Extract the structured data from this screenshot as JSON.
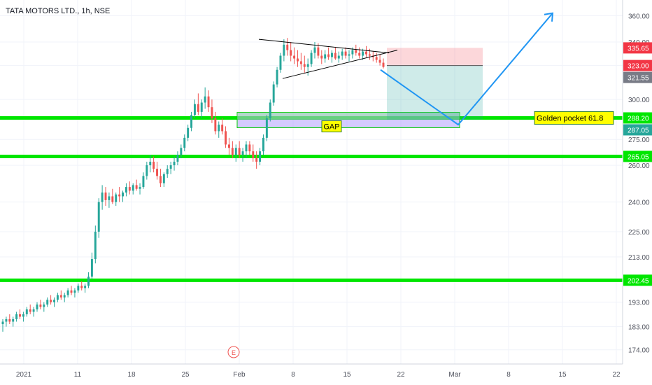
{
  "header": {
    "title": "TATA MOTORS LTD., 1h, NSE"
  },
  "chart_data": {
    "type": "candlestick",
    "symbol": "TATA MOTORS LTD.",
    "interval": "1h",
    "exchange": "NSE",
    "y_scale": "log",
    "ylim": [
      170,
      368
    ],
    "y_ticks": [
      "360.00",
      "340.00",
      "323.00",
      "300.00",
      "288.20",
      "275.00",
      "265.05",
      "260.00",
      "240.00",
      "225.00",
      "213.00",
      "202.45",
      "193.00",
      "183.00",
      "174.00"
    ],
    "x_ticks": [
      "2021",
      "11",
      "18",
      "25",
      "Feb",
      "8",
      "15",
      "22",
      "Mar",
      "8",
      "15",
      "22"
    ],
    "price_badges": [
      {
        "label": "335.65",
        "value": 335.65,
        "color": "#f23645"
      },
      {
        "label": "323.00",
        "value": 323.0,
        "color": "#f23645"
      },
      {
        "label": "321.55",
        "value": 321.55,
        "color": "#787b86"
      },
      {
        "label": "288.20",
        "value": 288.2,
        "color": "#00e600"
      },
      {
        "label": "287.05",
        "value": 287.05,
        "color": "#26a69a"
      },
      {
        "label": "265.05",
        "value": 265.05,
        "color": "#00e600"
      },
      {
        "label": "202.45",
        "value": 202.45,
        "color": "#00e600"
      }
    ],
    "horizontal_levels": [
      288.2,
      265.05,
      202.45
    ],
    "annotations": {
      "gap_label": "GAP",
      "golden_pocket_label": "Golden pocket 61.8",
      "earnings_marker": "E"
    },
    "colors": {
      "up": "#26a69a",
      "down": "#ef5350",
      "level": "#00e600",
      "projection": "#2196f3",
      "triangle": "#000000"
    },
    "candles": [
      [
        184,
        186,
        181,
        185
      ],
      [
        185,
        187,
        183,
        186
      ],
      [
        186,
        188,
        184,
        185
      ],
      [
        185,
        187,
        183,
        186
      ],
      [
        186,
        189,
        185,
        188
      ],
      [
        188,
        190,
        186,
        187
      ],
      [
        187,
        189,
        185,
        188
      ],
      [
        188,
        191,
        187,
        190
      ],
      [
        190,
        192,
        188,
        189
      ],
      [
        189,
        191,
        187,
        190
      ],
      [
        190,
        193,
        189,
        192
      ],
      [
        192,
        194,
        190,
        191
      ],
      [
        191,
        193,
        189,
        192
      ],
      [
        192,
        195,
        191,
        194
      ],
      [
        194,
        196,
        192,
        193
      ],
      [
        193,
        195,
        191,
        194
      ],
      [
        194,
        197,
        193,
        196
      ],
      [
        196,
        198,
        194,
        195
      ],
      [
        195,
        197,
        193,
        196
      ],
      [
        196,
        199,
        195,
        198
      ],
      [
        198,
        200,
        196,
        197
      ],
      [
        197,
        199,
        195,
        198
      ],
      [
        198,
        201,
        197,
        200
      ],
      [
        200,
        202,
        198,
        199
      ],
      [
        199,
        201,
        197,
        200
      ],
      [
        200,
        206,
        199,
        204
      ],
      [
        204,
        215,
        203,
        212
      ],
      [
        212,
        228,
        210,
        225
      ],
      [
        225,
        242,
        222,
        240
      ],
      [
        240,
        249,
        236,
        245
      ],
      [
        245,
        248,
        238,
        241
      ],
      [
        241,
        245,
        237,
        243
      ],
      [
        243,
        247,
        239,
        240
      ],
      [
        240,
        245,
        238,
        244
      ],
      [
        244,
        248,
        240,
        243
      ],
      [
        243,
        246,
        240,
        245
      ],
      [
        245,
        250,
        243,
        248
      ],
      [
        248,
        251,
        244,
        246
      ],
      [
        246,
        250,
        244,
        249
      ],
      [
        249,
        252,
        246,
        247
      ],
      [
        247,
        250,
        244,
        248
      ],
      [
        248,
        256,
        247,
        254
      ],
      [
        254,
        262,
        252,
        260
      ],
      [
        260,
        266,
        256,
        262
      ],
      [
        262,
        265,
        256,
        258
      ],
      [
        258,
        262,
        252,
        254
      ],
      [
        254,
        258,
        248,
        250
      ],
      [
        250,
        256,
        248,
        255
      ],
      [
        255,
        260,
        253,
        258
      ],
      [
        258,
        262,
        255,
        260
      ],
      [
        260,
        265,
        257,
        262
      ],
      [
        262,
        268,
        260,
        266
      ],
      [
        266,
        272,
        264,
        270
      ],
      [
        270,
        278,
        268,
        276
      ],
      [
        276,
        284,
        274,
        282
      ],
      [
        282,
        292,
        280,
        290
      ],
      [
        290,
        300,
        288,
        297
      ],
      [
        297,
        304,
        290,
        292
      ],
      [
        292,
        300,
        288,
        298
      ],
      [
        298,
        308,
        294,
        302
      ],
      [
        302,
        306,
        292,
        295
      ],
      [
        295,
        300,
        285,
        288
      ],
      [
        288,
        292,
        278,
        280
      ],
      [
        280,
        286,
        276,
        284
      ],
      [
        284,
        288,
        278,
        280
      ],
      [
        280,
        283,
        270,
        272
      ],
      [
        272,
        276,
        266,
        270
      ],
      [
        270,
        274,
        264,
        266
      ],
      [
        266,
        272,
        262,
        270
      ],
      [
        270,
        274,
        264,
        266
      ],
      [
        266,
        270,
        262,
        268
      ],
      [
        268,
        274,
        264,
        272
      ],
      [
        272,
        274,
        266,
        268
      ],
      [
        268,
        272,
        262,
        264
      ],
      [
        264,
        268,
        258,
        262
      ],
      [
        262,
        270,
        260,
        268
      ],
      [
        268,
        278,
        266,
        276
      ],
      [
        276,
        290,
        274,
        288
      ],
      [
        288,
        300,
        286,
        298
      ],
      [
        298,
        312,
        296,
        310
      ],
      [
        310,
        322,
        308,
        320
      ],
      [
        320,
        332,
        318,
        330
      ],
      [
        330,
        342,
        326,
        338
      ],
      [
        338,
        343,
        330,
        334
      ],
      [
        334,
        340,
        326,
        330
      ],
      [
        330,
        336,
        324,
        328
      ],
      [
        328,
        334,
        322,
        326
      ],
      [
        326,
        332,
        320,
        324
      ],
      [
        324,
        330,
        318,
        322
      ],
      [
        322,
        328,
        316,
        324
      ],
      [
        324,
        334,
        322,
        332
      ],
      [
        332,
        340,
        328,
        336
      ],
      [
        336,
        339,
        328,
        330
      ],
      [
        330,
        334,
        324,
        328
      ],
      [
        328,
        334,
        325,
        331
      ],
      [
        331,
        336,
        327,
        329
      ],
      [
        329,
        334,
        325,
        332
      ],
      [
        332,
        336,
        327,
        328
      ],
      [
        328,
        333,
        325,
        330
      ],
      [
        330,
        335,
        327,
        333
      ],
      [
        333,
        336,
        328,
        330
      ],
      [
        330,
        334,
        326,
        331
      ],
      [
        331,
        336,
        328,
        334
      ],
      [
        334,
        338,
        330,
        332
      ],
      [
        332,
        336,
        328,
        330
      ],
      [
        330,
        335,
        327,
        333
      ],
      [
        333,
        337,
        329,
        331
      ],
      [
        331,
        335,
        327,
        330
      ],
      [
        330,
        333,
        326,
        329
      ],
      [
        329,
        332,
        325,
        327
      ],
      [
        327,
        331,
        323,
        325
      ],
      [
        325,
        328,
        321,
        322
      ]
    ]
  }
}
